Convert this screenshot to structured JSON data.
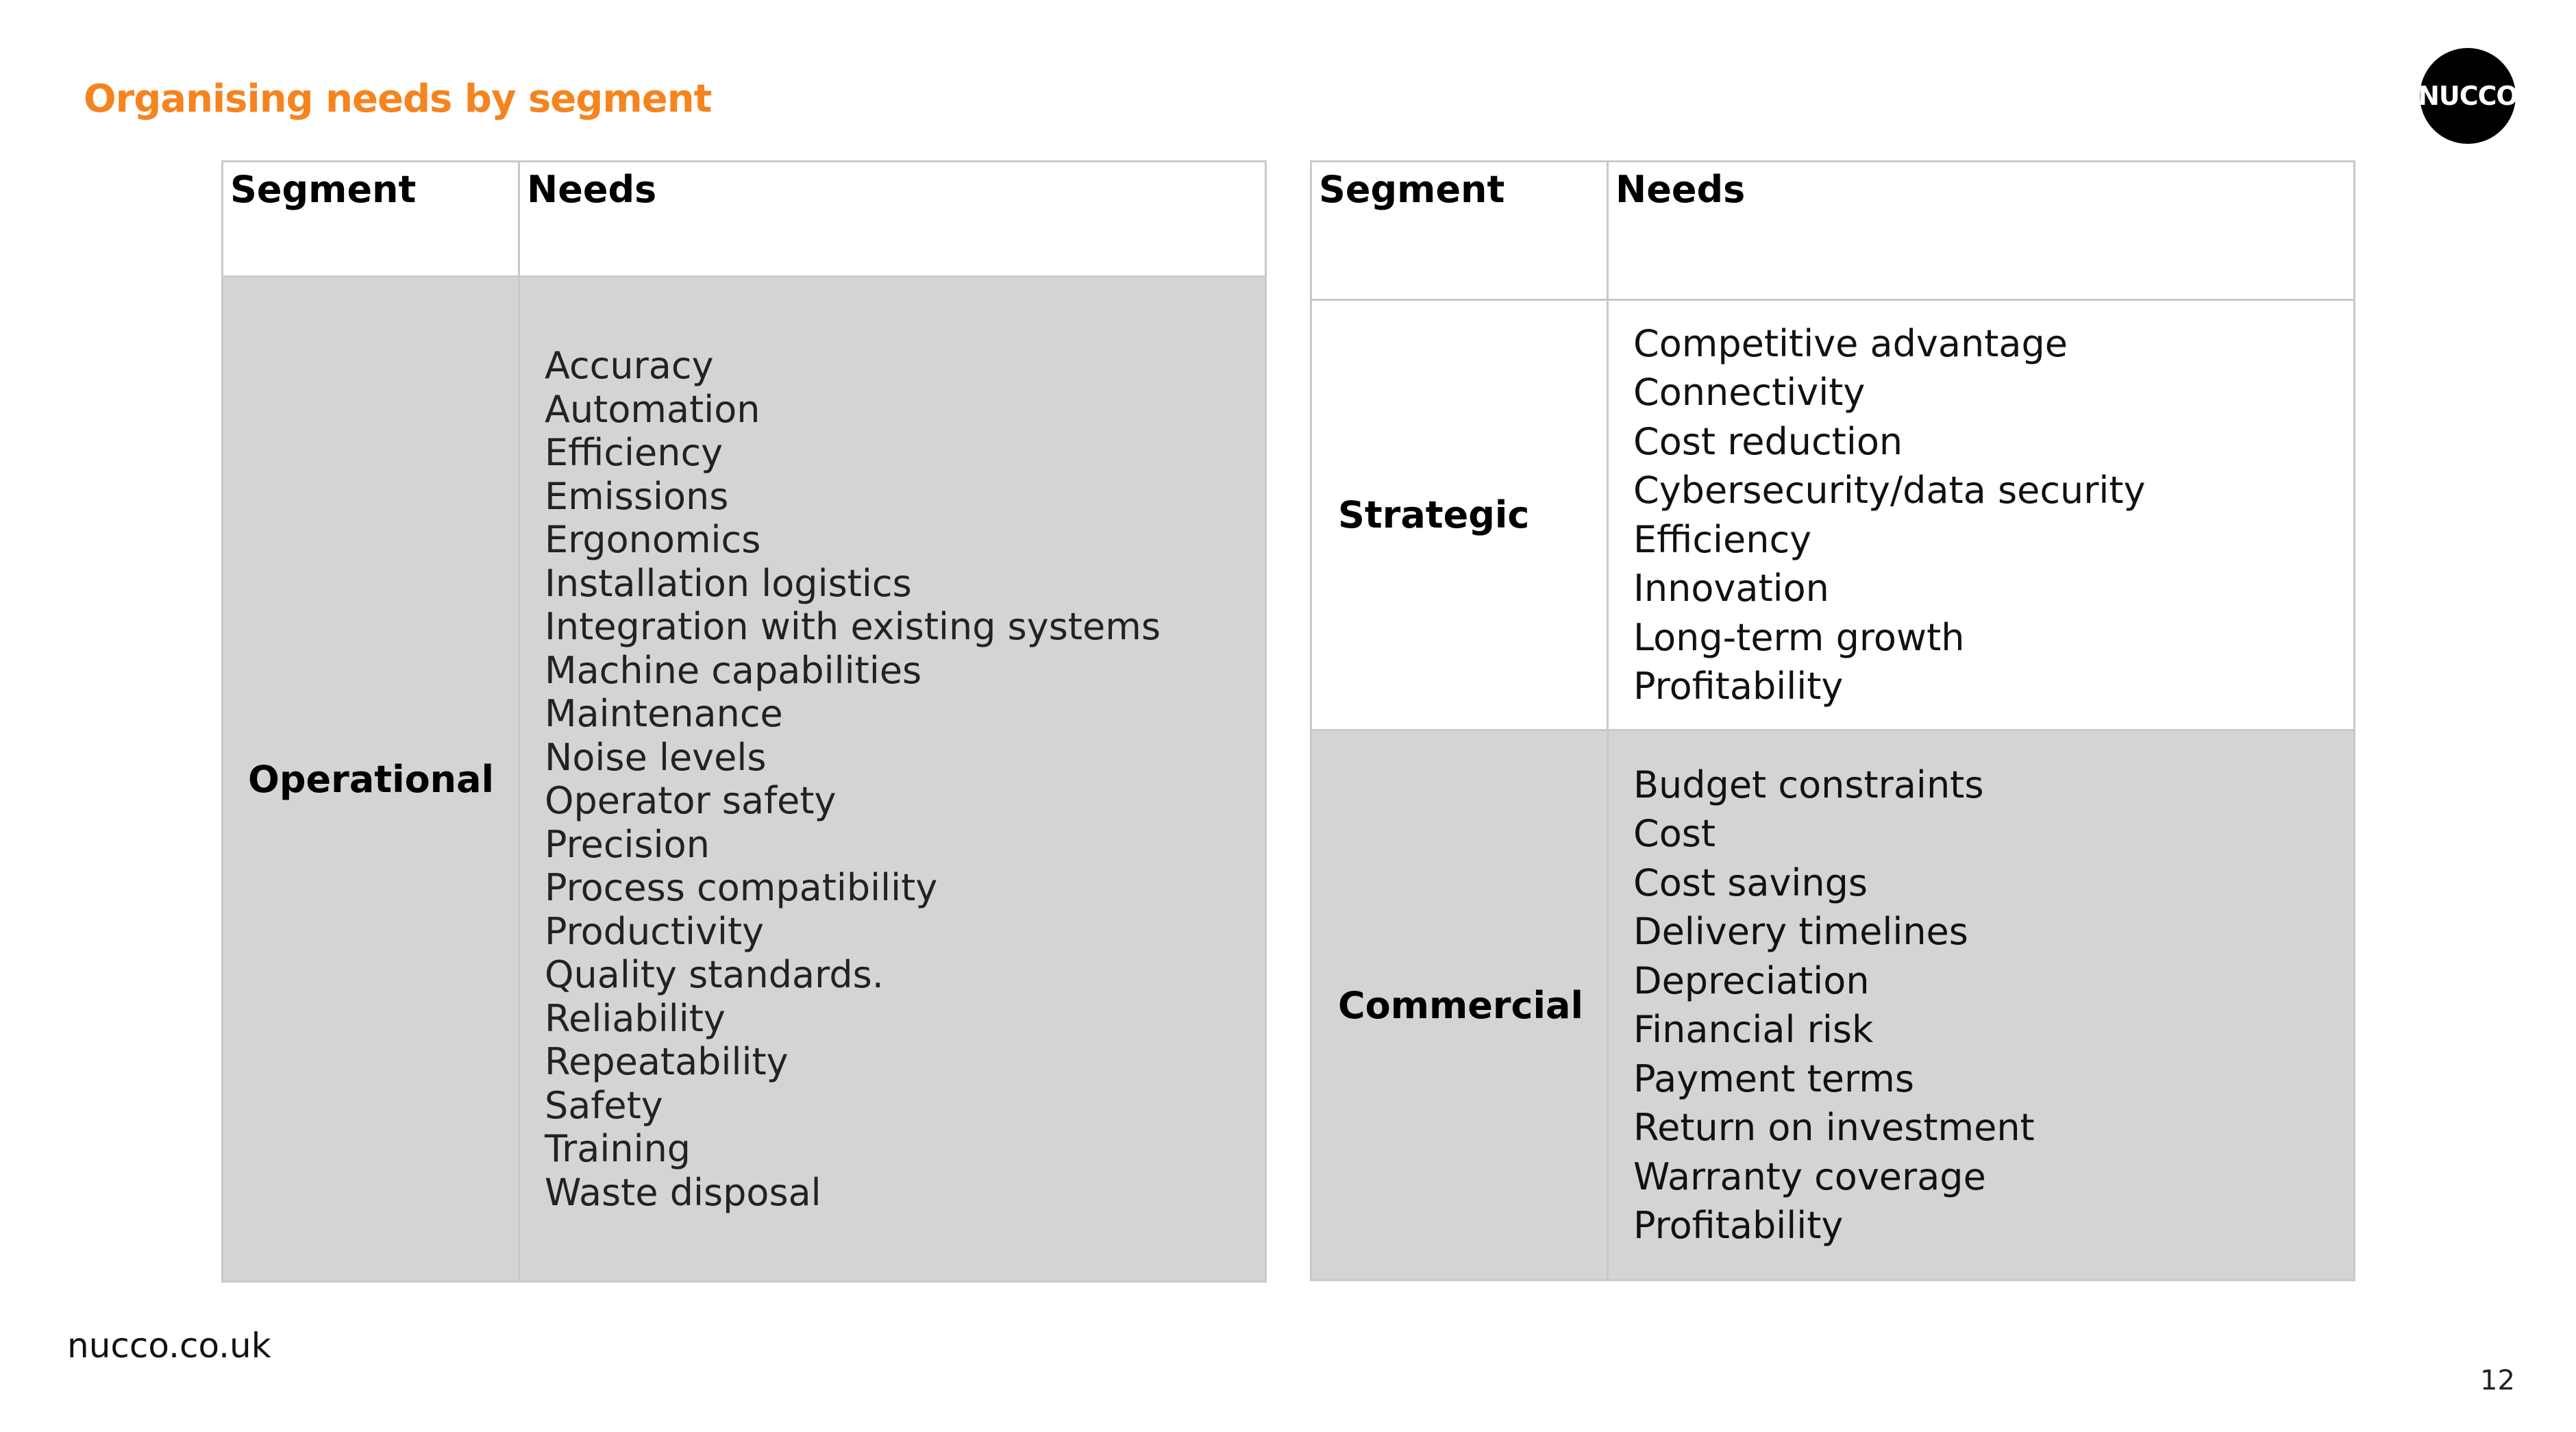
{
  "title": "Organising needs by segment",
  "logo_text": "NUCCO",
  "colors": {
    "title": "#f5841f",
    "grey_row": "#d4d4d4",
    "border": "#c9c9c9",
    "logo_bg": "#000000"
  },
  "left_table": {
    "headers": {
      "segment": "Segment",
      "needs": "Needs"
    },
    "rows": [
      {
        "segment": "Operational",
        "needs": [
          "Accuracy",
          "Automation",
          "Efficiency",
          "Emissions",
          "Ergonomics",
          "Installation logistics",
          "Integration with existing systems",
          "Machine capabilities",
          "Maintenance",
          "Noise levels",
          "Operator safety",
          "Precision",
          "Process compatibility",
          "Productivity",
          "Quality standards.",
          "Reliability",
          "Repeatability",
          "Safety",
          "Training",
          "Waste disposal"
        ]
      }
    ]
  },
  "right_table": {
    "headers": {
      "segment": "Segment",
      "needs": "Needs"
    },
    "rows": [
      {
        "segment": "Strategic",
        "needs": [
          "Competitive advantage",
          "Connectivity",
          "Cost reduction",
          "Cybersecurity/data security",
          "Efficiency",
          "Innovation",
          "Long-term growth",
          "Profitability"
        ]
      },
      {
        "segment": "Commercial",
        "needs": [
          "Budget constraints",
          "Cost",
          "Cost savings",
          "Delivery timelines",
          "Depreciation",
          "Financial risk",
          "Payment terms",
          "Return on investment",
          "Warranty coverage",
          "Profitability"
        ]
      }
    ]
  },
  "footer": {
    "url": "nucco.co.uk",
    "page_number": "12"
  }
}
